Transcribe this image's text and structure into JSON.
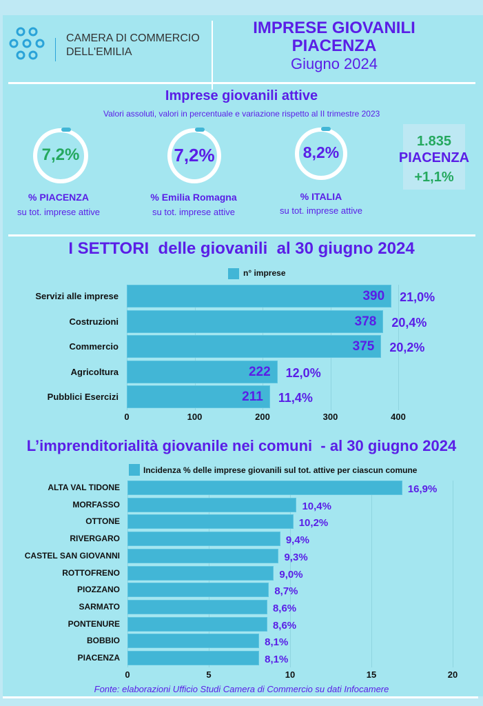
{
  "header": {
    "org_line1": "CAMERA DI COMMERCIO",
    "org_line2": "DELL'EMILIA",
    "title1": "IMPRESE GIOVANILI",
    "title2": "PIACENZA",
    "subtitle": "Giugno 2024"
  },
  "kpi": {
    "title": "Imprese giovanili attive",
    "subtitle": "Valori assoluti, valori in percentuale e variazione rispetto al II trimestre 2023",
    "rings": [
      {
        "value": "7,2%",
        "label": "%  PIACENZA",
        "sub": "su tot. imprese attive",
        "fraction": 0.072
      },
      {
        "value": "7,2%",
        "label": "%  Emilia Romagna",
        "sub": "su tot. imprese attive",
        "fraction": 0.072
      },
      {
        "value": "8,2%",
        "label": "%  ITALIA",
        "sub": "su tot. imprese attive",
        "fraction": 0.082
      }
    ],
    "box": {
      "count": "1.835",
      "place": "PIACENZA",
      "change": "+1,1%"
    }
  },
  "colors": {
    "bar": "#42b6d6",
    "purple": "#5a1ee6",
    "green": "#24a85e",
    "bg": "#a4e6f0"
  },
  "chart_data": [
    {
      "type": "bar",
      "title": "I SETTORI  delle giovanili  al 30 giugno 2024",
      "legend": "n° imprese",
      "legend_position": "top",
      "categories": [
        "Servizi alle imprese",
        "Costruzioni",
        "Commercio",
        "Agricoltura",
        "Pubblici Esercizi"
      ],
      "values": [
        390,
        378,
        375,
        222,
        211
      ],
      "value_labels": [
        "390",
        "378",
        "375",
        "222",
        "211"
      ],
      "pct_labels": [
        "21,0%",
        "20,4%",
        "20,2%",
        "12,0%",
        "11,4%"
      ],
      "xlim": [
        0,
        400
      ],
      "ticks": [
        "0",
        "100",
        "200",
        "300",
        "400"
      ],
      "grid": true
    },
    {
      "type": "bar",
      "title": "L’imprenditorialità giovanile nei comuni  - al 30 giugno 2024",
      "legend": "Incidenza % delle imprese giovanili sul tot. attive per ciascun comune",
      "legend_position": "top",
      "categories": [
        "ALTA VAL TIDONE",
        "MORFASSO",
        "OTTONE",
        "RIVERGARO",
        "CASTEL SAN GIOVANNI",
        "ROTTOFRENO",
        "PIOZZANO",
        "SARMATO",
        "PONTENURE",
        "BOBBIO",
        "PIACENZA"
      ],
      "values": [
        16.9,
        10.4,
        10.2,
        9.4,
        9.3,
        9.0,
        8.7,
        8.6,
        8.6,
        8.1,
        8.1
      ],
      "value_labels": [
        "16,9%",
        "10,4%",
        "10,2%",
        "9,4%",
        "9,3%",
        "9,0%",
        "8,7%",
        "8,6%",
        "8,6%",
        "8,1%",
        "8,1%"
      ],
      "xlim": [
        0,
        20
      ],
      "ticks": [
        "0",
        "5",
        "10",
        "15",
        "20"
      ],
      "grid": true
    }
  ],
  "footer": {
    "source": "Fonte: elaborazioni Ufficio Studi Camera di Commercio su dati Infocamere"
  }
}
